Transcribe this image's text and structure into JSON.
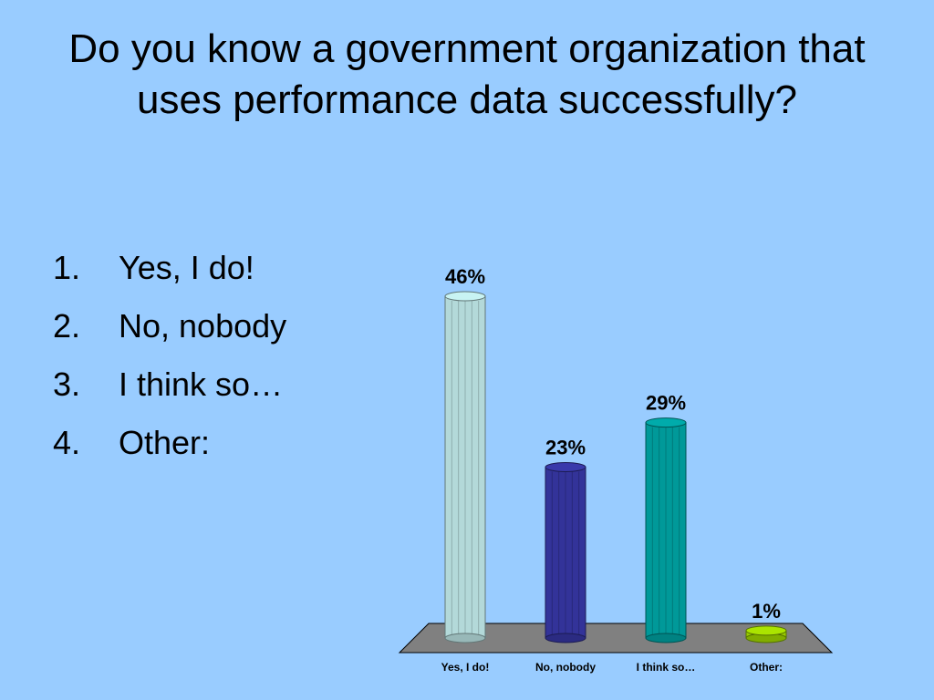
{
  "slide": {
    "title": "Do you know a government organization that uses performance data successfully?",
    "options": [
      {
        "number": "1.",
        "label": "Yes, I do!"
      },
      {
        "number": "2.",
        "label": "No, nobody"
      },
      {
        "number": "3.",
        "label": "I think so…"
      },
      {
        "number": "4.",
        "label": "Other:"
      }
    ]
  },
  "chart_data": {
    "type": "bar",
    "title": "",
    "xlabel": "",
    "ylabel": "",
    "categories": [
      "Yes, I do!",
      "No, nobody",
      "I think so…",
      "Other:"
    ],
    "values": [
      46,
      23,
      29,
      1
    ],
    "data_labels": [
      "46%",
      "23%",
      "29%",
      "1%"
    ],
    "ylim": [
      0,
      46
    ],
    "grid": false,
    "legend": "none",
    "colors": [
      "#b3d9d9",
      "#333399",
      "#009999",
      "#99cc00"
    ]
  }
}
